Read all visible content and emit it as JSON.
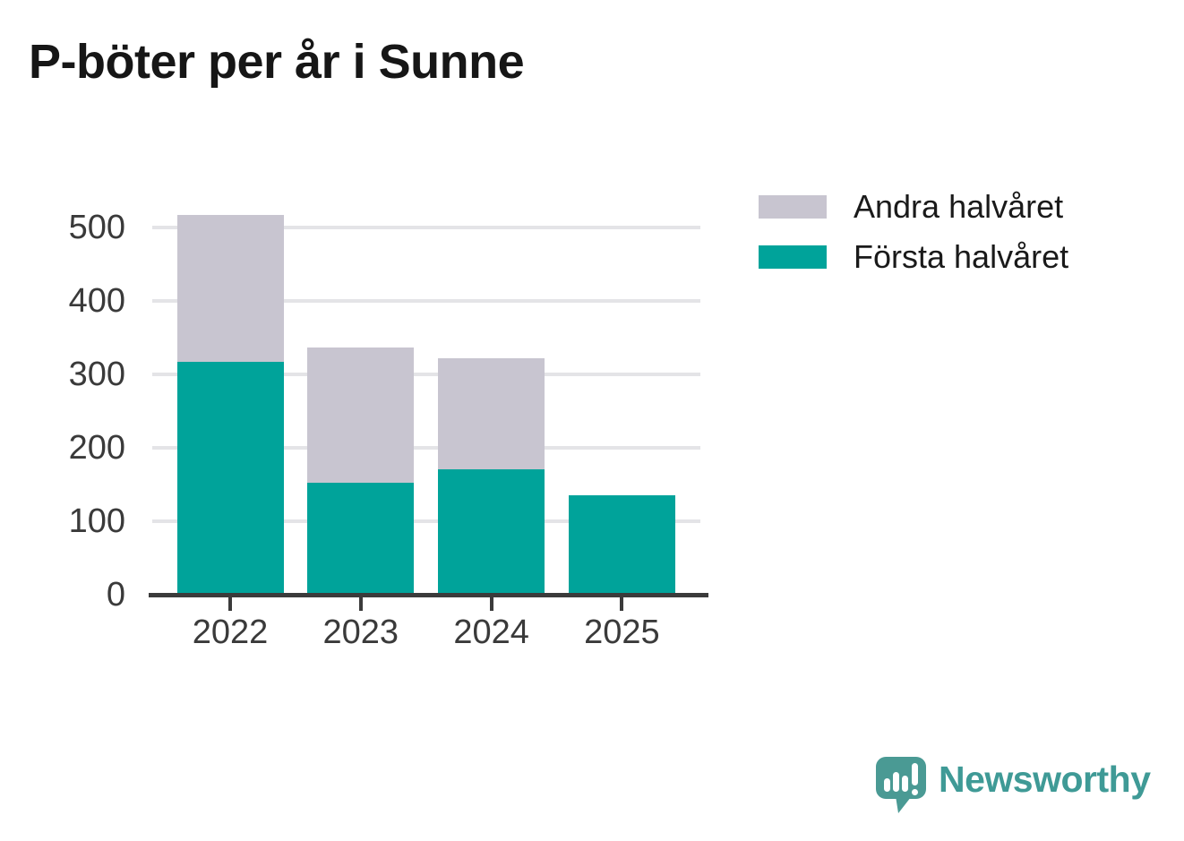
{
  "title": "P-böter per år i Sunne",
  "chart_data": {
    "type": "bar",
    "stacked": true,
    "title": "P-böter per år i Sunne",
    "categories": [
      "2022",
      "2023",
      "2024",
      "2025"
    ],
    "series": [
      {
        "name": "Första halvåret",
        "color": "#00a39a",
        "values": [
          317,
          152,
          171,
          135
        ]
      },
      {
        "name": "Andra halvåret",
        "color": "#c8c5d0",
        "values": [
          200,
          184,
          151,
          0
        ]
      }
    ],
    "totals": [
      517,
      336,
      322,
      135
    ],
    "xlabel": "",
    "ylabel": "",
    "ylim": [
      0,
      530
    ],
    "yticks": [
      0,
      100,
      200,
      300,
      400,
      500
    ],
    "grid": "horizontal",
    "legend_position": "top-right"
  },
  "legend": {
    "items": [
      {
        "label": "Andra halvåret",
        "color": "#c8c5d0"
      },
      {
        "label": "Första halvåret",
        "color": "#00a39a"
      }
    ]
  },
  "footer": {
    "brand": "Newsworthy",
    "logo_color": "#4a9a94",
    "brand_text_color": "#3f9a96"
  },
  "colors": {
    "background": "#ffffff",
    "title_text": "#161616",
    "axis_text": "#3a3a3a",
    "axis_line": "#3b3b3b",
    "gridline": "#e4e4e7"
  }
}
